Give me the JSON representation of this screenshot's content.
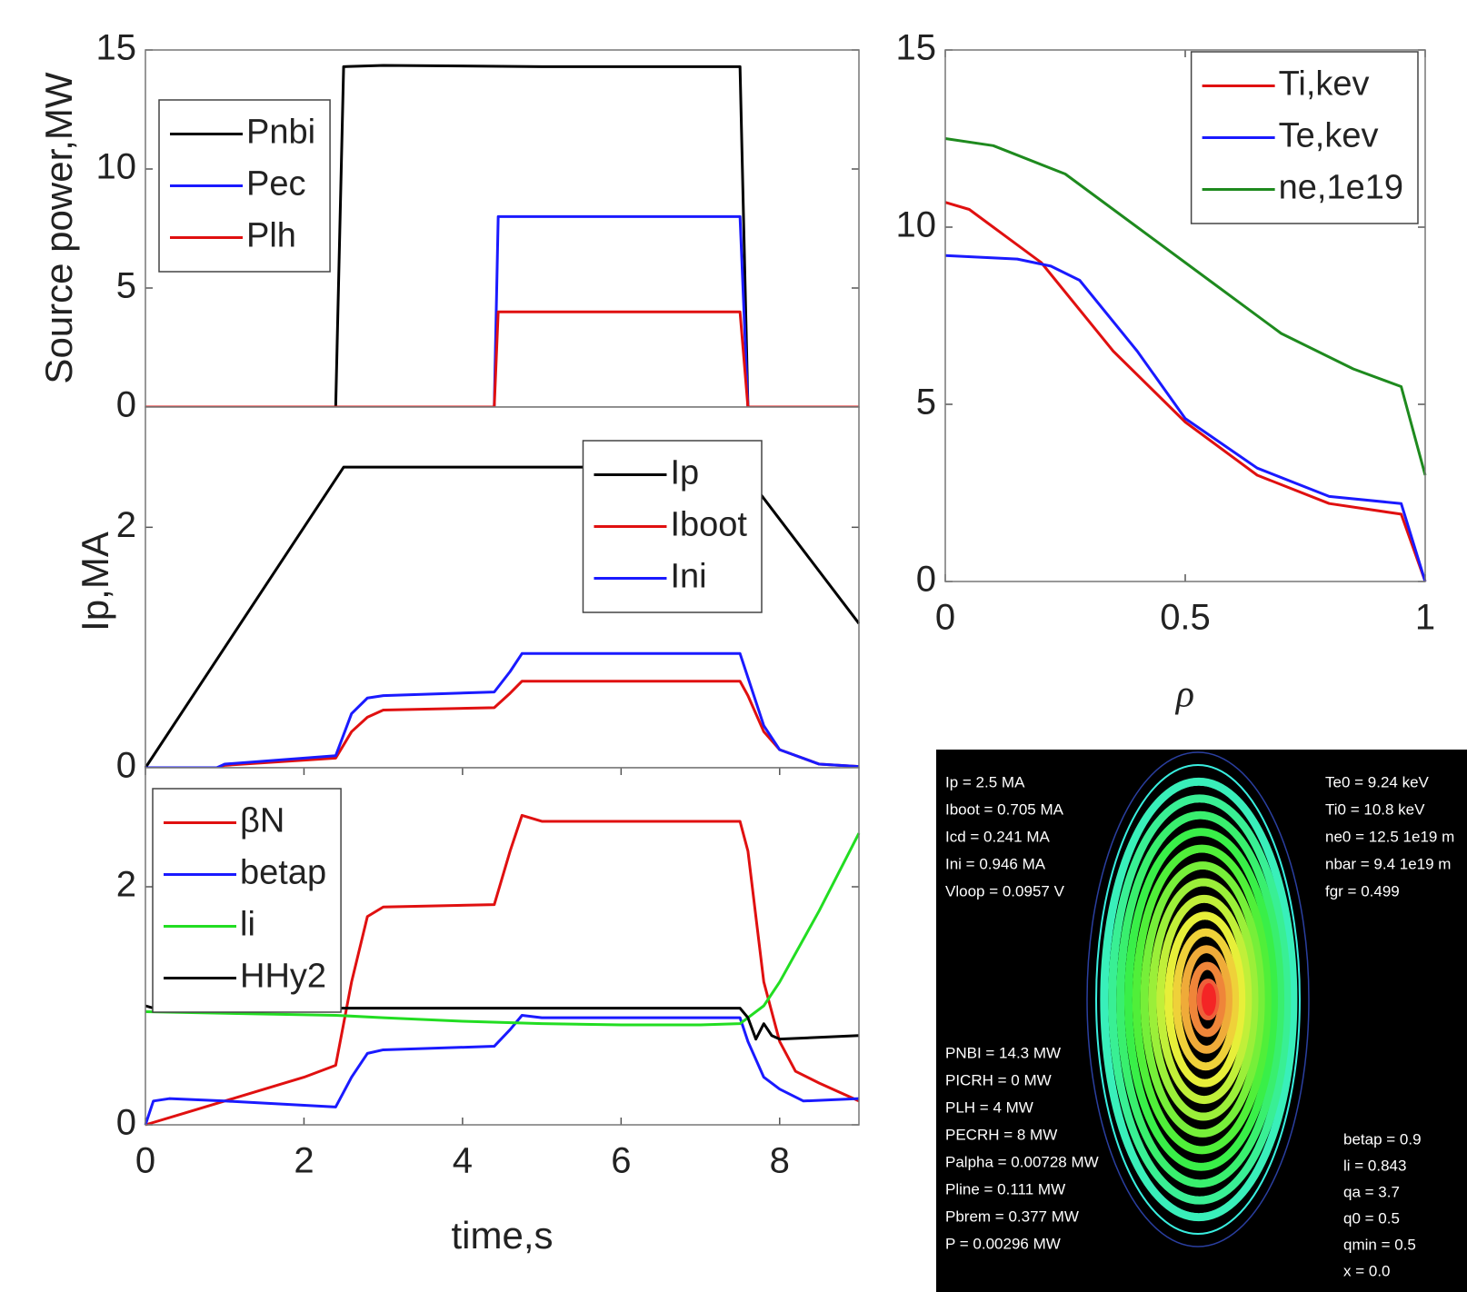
{
  "chart_data": [
    {
      "type": "line",
      "ylabel": "Source power,MW",
      "xlim": [
        0,
        9
      ],
      "ylim": [
        0,
        15
      ],
      "yticks": [
        0,
        5,
        10,
        15
      ],
      "legend": "upper left",
      "series": [
        {
          "name": "Pnbi",
          "color": "#000000",
          "x": [
            0,
            2.4,
            2.5,
            3,
            5,
            7.5,
            7.6,
            9
          ],
          "values": [
            0,
            0,
            14.3,
            14.35,
            14.3,
            14.3,
            0,
            0
          ]
        },
        {
          "name": "Pec",
          "color": "#1a1aff",
          "x": [
            0,
            4.4,
            4.45,
            7.5,
            7.6,
            9
          ],
          "values": [
            0,
            0,
            8,
            8,
            0,
            0
          ]
        },
        {
          "name": "Plh",
          "color": "#e01010",
          "x": [
            0,
            4.4,
            4.45,
            7.5,
            7.6,
            9
          ],
          "values": [
            0,
            0,
            4,
            4,
            0,
            0
          ]
        }
      ]
    },
    {
      "type": "line",
      "ylabel": "Ip,MA",
      "xlim": [
        0,
        9
      ],
      "ylim": [
        0,
        3
      ],
      "yticks": [
        0,
        2
      ],
      "legend": "upper right",
      "series": [
        {
          "name": "Ip",
          "color": "#000000",
          "x": [
            0,
            2.5,
            7.5,
            9
          ],
          "values": [
            0,
            2.5,
            2.5,
            1.2
          ]
        },
        {
          "name": "Iboot",
          "color": "#e01010",
          "x": [
            0,
            0.9,
            1,
            2.4,
            2.6,
            2.8,
            3,
            4.4,
            4.6,
            4.75,
            7.5,
            7.6,
            7.8,
            8,
            8.5,
            9
          ],
          "values": [
            0,
            0,
            0.02,
            0.08,
            0.3,
            0.42,
            0.48,
            0.5,
            0.62,
            0.72,
            0.72,
            0.6,
            0.3,
            0.15,
            0.03,
            0.01
          ]
        },
        {
          "name": "Ini",
          "color": "#1a1aff",
          "x": [
            0,
            0.9,
            1,
            2.4,
            2.6,
            2.8,
            3,
            4.4,
            4.6,
            4.75,
            7.5,
            7.6,
            7.8,
            8,
            8.5,
            9
          ],
          "values": [
            0,
            0,
            0.03,
            0.1,
            0.45,
            0.58,
            0.6,
            0.63,
            0.8,
            0.95,
            0.95,
            0.75,
            0.35,
            0.15,
            0.03,
            0.01
          ]
        }
      ]
    },
    {
      "type": "line",
      "xlabel": "time,s",
      "xlim": [
        0,
        9
      ],
      "xticks": [
        0,
        2,
        4,
        6,
        8
      ],
      "ylim": [
        0,
        3
      ],
      "yticks": [
        0,
        2
      ],
      "legend": "upper left",
      "series": [
        {
          "name": "βN",
          "color": "#e01010",
          "x": [
            0,
            0.5,
            1,
            1.5,
            2,
            2.4,
            2.6,
            2.8,
            3,
            4.4,
            4.6,
            4.75,
            5,
            7.5,
            7.6,
            7.8,
            8,
            8.2,
            8.5,
            9
          ],
          "values": [
            0,
            0.1,
            0.2,
            0.3,
            0.4,
            0.5,
            1.2,
            1.75,
            1.83,
            1.85,
            2.3,
            2.6,
            2.55,
            2.55,
            2.3,
            1.2,
            0.7,
            0.45,
            0.35,
            0.2
          ]
        },
        {
          "name": "betap",
          "color": "#1a1aff",
          "x": [
            0,
            0.1,
            0.3,
            1,
            2.4,
            2.6,
            2.8,
            3,
            4.4,
            4.6,
            4.75,
            5,
            7.5,
            7.6,
            7.8,
            8,
            8.3,
            9
          ],
          "values": [
            0,
            0.2,
            0.22,
            0.2,
            0.15,
            0.4,
            0.6,
            0.63,
            0.66,
            0.8,
            0.92,
            0.9,
            0.9,
            0.7,
            0.4,
            0.3,
            0.2,
            0.22
          ]
        },
        {
          "name": "li",
          "color": "#22dd22",
          "x": [
            0,
            2.4,
            3,
            4,
            5,
            6,
            7,
            7.5,
            7.8,
            8,
            8.5,
            9
          ],
          "values": [
            0.95,
            0.92,
            0.9,
            0.87,
            0.85,
            0.84,
            0.84,
            0.85,
            1.0,
            1.2,
            1.8,
            2.45
          ]
        },
        {
          "name": "HHy2",
          "color": "#000000",
          "x": [
            0,
            0.1,
            7.5,
            7.6,
            7.7,
            7.8,
            7.9,
            8,
            9
          ],
          "values": [
            1.0,
            0.98,
            0.98,
            0.9,
            0.72,
            0.85,
            0.75,
            0.72,
            0.75
          ]
        }
      ]
    },
    {
      "type": "line",
      "xlabel": "ρ",
      "xlim": [
        0,
        1
      ],
      "xticks": [
        0,
        0.5,
        1
      ],
      "ylim": [
        0,
        15
      ],
      "yticks": [
        0,
        5,
        10,
        15
      ],
      "legend": "upper right",
      "series": [
        {
          "name": "Ti,kev",
          "color": "#e01010",
          "x": [
            0,
            0.05,
            0.1,
            0.2,
            0.35,
            0.5,
            0.65,
            0.8,
            0.95,
            1
          ],
          "values": [
            10.7,
            10.5,
            10,
            9,
            6.5,
            4.5,
            3,
            2.2,
            1.9,
            0
          ]
        },
        {
          "name": "Te,kev",
          "color": "#1a1aff",
          "x": [
            0,
            0.15,
            0.22,
            0.28,
            0.4,
            0.5,
            0.65,
            0.8,
            0.95,
            1
          ],
          "values": [
            9.2,
            9.1,
            8.9,
            8.5,
            6.5,
            4.6,
            3.2,
            2.4,
            2.2,
            0
          ]
        },
        {
          "name": "ne,1e19",
          "color": "#1e8a1e",
          "x": [
            0,
            0.1,
            0.25,
            0.4,
            0.55,
            0.7,
            0.85,
            0.95,
            1
          ],
          "values": [
            12.5,
            12.3,
            11.5,
            10,
            8.5,
            7,
            6,
            5.5,
            3
          ]
        }
      ]
    }
  ],
  "equilibrium": {
    "top_left": [
      "Ip = 2.5 MA",
      "Iboot = 0.705 MA",
      "Icd = 0.241 MA",
      "Ini = 0.946 MA",
      "Vloop = 0.0957 V"
    ],
    "top_right": [
      "Te0 = 9.24 keV",
      "Ti0 = 10.8 keV",
      "ne0 = 12.5 1e19 m",
      "nbar = 9.4 1e19 m",
      "fgr = 0.499"
    ],
    "bottom_left": [
      "PNBI = 14.3 MW",
      "PICRH = 0 MW",
      "PLH = 4 MW",
      "PECRH = 8 MW",
      "Palpha = 0.00728 MW",
      "Pline = 0.111 MW",
      "Pbrem = 0.377 MW",
      "P = 0.00296 MW"
    ],
    "bottom_right": [
      "betap = 0.9",
      "li = 0.843",
      "qa = 3.7",
      "q0 = 0.5",
      "qmin = 0.5",
      "x = 0.0"
    ]
  }
}
